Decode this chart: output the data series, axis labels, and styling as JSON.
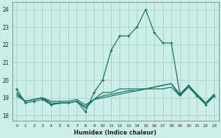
{
  "xlabel": "Humidex (Indice chaleur)",
  "bg_color": "#cceee8",
  "grid_color": "#aad4cc",
  "line_color": "#1a6e60",
  "xlim": [
    -0.5,
    23.5
  ],
  "ylim": [
    17.7,
    24.4
  ],
  "xticks": [
    0,
    1,
    2,
    3,
    4,
    5,
    6,
    7,
    8,
    9,
    10,
    11,
    12,
    13,
    14,
    15,
    16,
    17,
    18,
    19,
    20,
    21,
    22,
    23
  ],
  "yticks": [
    18,
    19,
    20,
    21,
    22,
    23,
    24
  ],
  "series": [
    [
      19.5,
      18.7,
      18.8,
      18.9,
      18.6,
      18.7,
      18.7,
      18.8,
      18.2,
      19.3,
      20.0,
      21.7,
      22.5,
      22.5,
      23.0,
      24.0,
      22.7,
      22.1,
      22.1,
      19.2,
      19.7,
      19.1,
      18.6,
      19.1
    ],
    [
      19.3,
      18.8,
      18.9,
      19.0,
      18.6,
      18.7,
      18.7,
      18.8,
      18.4,
      18.9,
      19.3,
      19.3,
      19.5,
      19.5,
      19.5,
      19.5,
      19.5,
      19.5,
      19.6,
      19.1,
      19.6,
      19.1,
      18.7,
      19.1
    ],
    [
      19.2,
      18.8,
      18.9,
      19.0,
      18.7,
      18.7,
      18.7,
      18.8,
      18.5,
      18.9,
      19.1,
      19.2,
      19.3,
      19.4,
      19.4,
      19.5,
      19.6,
      19.7,
      19.8,
      19.1,
      19.7,
      19.1,
      18.7,
      19.2
    ],
    [
      19.1,
      18.8,
      18.9,
      19.0,
      18.8,
      18.8,
      18.8,
      18.9,
      18.6,
      18.9,
      19.0,
      19.1,
      19.2,
      19.3,
      19.4,
      19.5,
      19.6,
      19.7,
      19.8,
      19.2,
      19.7,
      19.2,
      18.7,
      19.2
    ]
  ],
  "marker_series": 0,
  "marker_indices": [
    0,
    1,
    2,
    3,
    4,
    5,
    6,
    7,
    8,
    9,
    10,
    11,
    12,
    13,
    14,
    15,
    16,
    17,
    18,
    19,
    20,
    21,
    22,
    23
  ]
}
